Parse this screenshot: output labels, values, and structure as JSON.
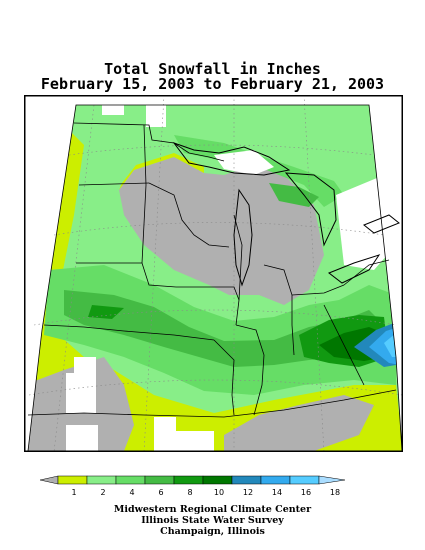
{
  "title": {
    "line1": "Total Snowfall in Inches",
    "line2": "February 15, 2003 to February 21, 2003"
  },
  "legend": {
    "labels": [
      "1",
      "2",
      "4",
      "6",
      "8",
      "10",
      "12",
      "14",
      "16",
      "18"
    ],
    "colors": [
      "#b0b0b0",
      "#ccee00",
      "#88ee88",
      "#66dd66",
      "#44bb44",
      "#119911",
      "#007700",
      "#2288bb",
      "#33aaee",
      "#55ccff",
      "#aaddff"
    ]
  },
  "map_colors": {
    "background": "#ffffff",
    "lt1": "#b0b0b0",
    "s1_2": "#ccee00",
    "s2_4": "#88ee88",
    "s4_6": "#66dd66",
    "s6_8": "#44bb44",
    "s8_10": "#119911",
    "s10_12": "#007700",
    "s12_14": "#2288bb",
    "s14_16": "#33aaee",
    "s16_18": "#55ccff",
    "water": "#ffffff",
    "lines": "#000000"
  },
  "credits": {
    "line1": "Midwestern Regional Climate Center",
    "line2": "Illinois State Water Survey",
    "line3": "Champaign, Illinois"
  }
}
